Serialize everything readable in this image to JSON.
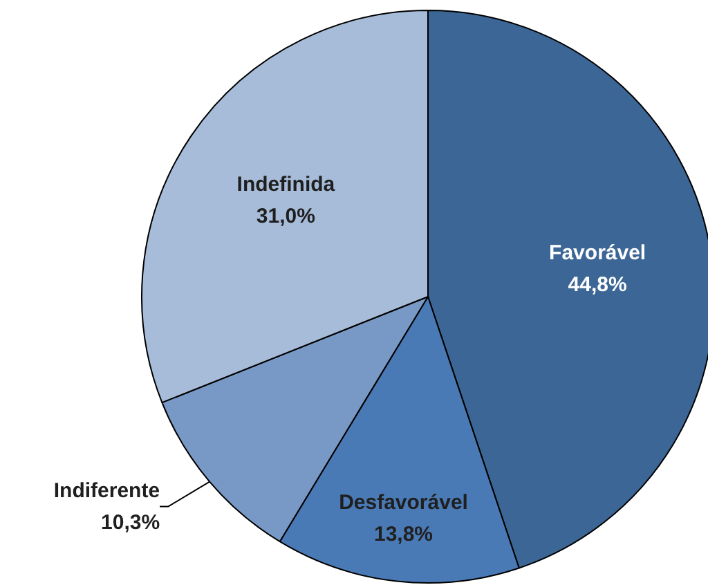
{
  "chart_data": {
    "type": "pie",
    "categories": [
      "Favorável",
      "Desfavorável",
      "Indiferente",
      "Indefinida"
    ],
    "values": [
      44.8,
      13.8,
      10.3,
      31.0
    ],
    "value_labels": [
      "44,8%",
      "13,8%",
      "10,3%",
      "31,0%"
    ],
    "colors": [
      "#3b6695",
      "#4a7ab5",
      "#7899c6",
      "#a7bcd9"
    ]
  }
}
